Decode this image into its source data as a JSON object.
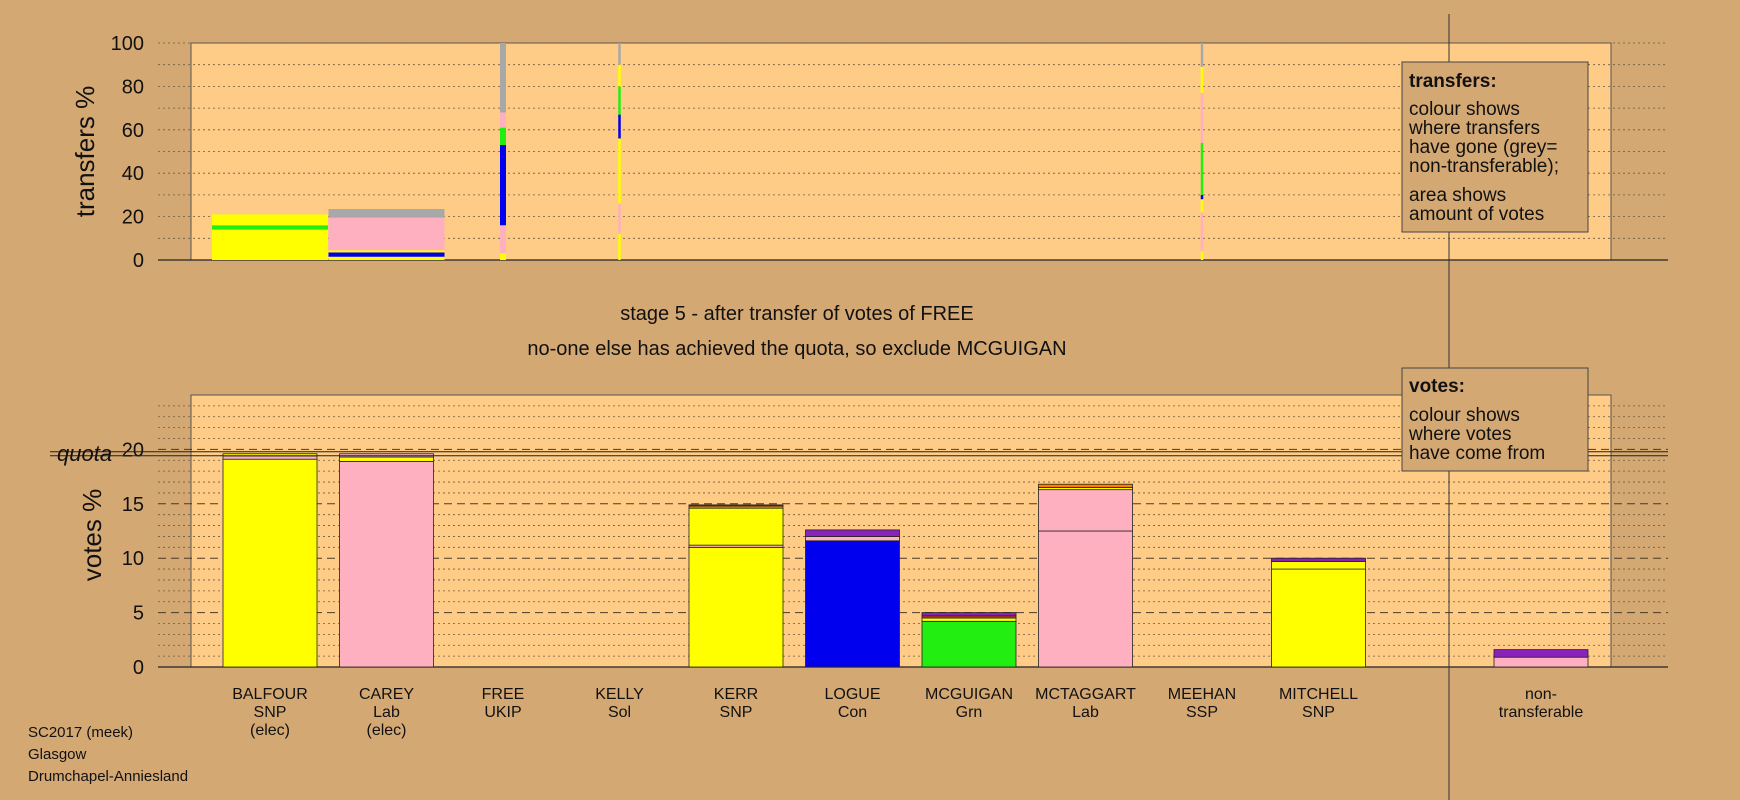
{
  "chart_data": {
    "type": "bar",
    "stage_title": "stage 5 - after transfer of votes of FREE",
    "stage_subtitle": "no-one else has achieved the quota, so exclude MCGUIGAN",
    "footer": [
      "SC2017 (meek)",
      "Glasgow",
      "Drumchapel-Anniesland"
    ],
    "party_colors": {
      "SNP": "#ffff00",
      "Lab": "#ffb0c0",
      "Con": "#0000ee",
      "Grn": "#22ee11",
      "UKIP": "#8822bb",
      "Sol": "#ff7f00",
      "SSP": "#e03030",
      "nontransferable": "#a8a8a8"
    },
    "plot_background": "#ffcc88",
    "page_background": "#d4a873",
    "candidates": [
      {
        "name": "BALFOUR",
        "party": "SNP",
        "note": "(elec)"
      },
      {
        "name": "CAREY",
        "party": "Lab",
        "note": "(elec)"
      },
      {
        "name": "FREE",
        "party": "UKIP",
        "note": ""
      },
      {
        "name": "KELLY",
        "party": "Sol",
        "note": ""
      },
      {
        "name": "KERR",
        "party": "SNP",
        "note": ""
      },
      {
        "name": "LOGUE",
        "party": "Con",
        "note": ""
      },
      {
        "name": "MCGUIGAN",
        "party": "Grn",
        "note": ""
      },
      {
        "name": "MCTAGGART",
        "party": "Lab",
        "note": ""
      },
      {
        "name": "MEEHAN",
        "party": "SSP",
        "note": ""
      },
      {
        "name": "MITCHELL",
        "party": "SNP",
        "note": ""
      }
    ],
    "nontransferable_label": [
      "non-",
      "transferable"
    ],
    "votes": {
      "ylabel": "votes %",
      "quota_label": "quota",
      "quota": 19.6,
      "ylim": [
        0,
        25
      ],
      "yticks": [
        0,
        5,
        10,
        15,
        20
      ],
      "bars": [
        {
          "cand": "BALFOUR",
          "segments": [
            {
              "party": "SNP",
              "value": 19.1
            },
            {
              "party": "Lab",
              "value": 0.3
            },
            {
              "party": "SNP",
              "value": 0.2
            }
          ]
        },
        {
          "cand": "CAREY",
          "segments": [
            {
              "party": "Lab",
              "value": 18.9
            },
            {
              "party": "SNP",
              "value": 0.4
            },
            {
              "party": "Lab",
              "value": 0.3
            }
          ]
        },
        {
          "cand": "FREE",
          "segments": []
        },
        {
          "cand": "KELLY",
          "segments": []
        },
        {
          "cand": "KERR",
          "segments": [
            {
              "party": "SNP",
              "value": 11.0
            },
            {
              "party": "Lab",
              "value": 0.2
            },
            {
              "party": "SNP",
              "value": 3.4
            },
            {
              "party": "Sol",
              "value": 0.2
            },
            {
              "party": "UKIP",
              "value": 0.1
            }
          ]
        },
        {
          "cand": "LOGUE",
          "segments": [
            {
              "party": "Con",
              "value": 11.6
            },
            {
              "party": "Lab",
              "value": 0.4
            },
            {
              "party": "UKIP",
              "value": 0.6
            }
          ]
        },
        {
          "cand": "MCGUIGAN",
          "segments": [
            {
              "party": "Grn",
              "value": 4.2
            },
            {
              "party": "SNP",
              "value": 0.3
            },
            {
              "party": "SSP",
              "value": 0.2
            },
            {
              "party": "UKIP",
              "value": 0.3
            }
          ]
        },
        {
          "cand": "MCTAGGART",
          "segments": [
            {
              "party": "Lab",
              "value": 12.5
            },
            {
              "party": "Lab",
              "value": 3.8
            },
            {
              "party": "SNP",
              "value": 0.2
            },
            {
              "party": "Sol",
              "value": 0.3
            }
          ]
        },
        {
          "cand": "MEEHAN",
          "segments": []
        },
        {
          "cand": "MITCHELL",
          "segments": [
            {
              "party": "SNP",
              "value": 9.0
            },
            {
              "party": "SNP",
              "value": 0.7
            },
            {
              "party": "UKIP",
              "value": 0.3
            }
          ]
        }
      ],
      "nontransferable": [
        {
          "party": "Lab",
          "value": 0.9
        },
        {
          "party": "UKIP",
          "value": 0.7
        }
      ]
    },
    "transfers": {
      "ylabel": "transfers %",
      "ylim": [
        0,
        100
      ],
      "yticks": [
        0,
        20,
        40,
        60,
        80,
        100
      ],
      "stacks": [
        {
          "cand": "BALFOUR",
          "width": "wide",
          "segments": [
            {
              "party": "SNP",
              "value": 14
            },
            {
              "party": "Grn",
              "value": 2
            },
            {
              "party": "SNP",
              "value": 5
            }
          ]
        },
        {
          "cand": "CAREY",
          "width": "wide",
          "segments": [
            {
              "party": "SNP",
              "value": 1.5
            },
            {
              "party": "Con",
              "value": 2
            },
            {
              "party": "SNP",
              "value": 1
            },
            {
              "party": "Lab",
              "value": 15
            },
            {
              "party": "nontransferable",
              "value": 4
            }
          ]
        },
        {
          "cand": "FREE",
          "width": "thin",
          "segments": [
            {
              "party": "SNP",
              "value": 3
            },
            {
              "party": "Lab",
              "value": 13
            },
            {
              "party": "Con",
              "value": 37
            },
            {
              "party": "Grn",
              "value": 8
            },
            {
              "party": "Lab",
              "value": 7
            },
            {
              "party": "nontransferable",
              "value": 32
            }
          ]
        },
        {
          "cand": "KELLY",
          "width": "hair",
          "segments": [
            {
              "party": "SNP",
              "value": 12
            },
            {
              "party": "Lab",
              "value": 14
            },
            {
              "party": "SNP",
              "value": 30
            },
            {
              "party": "Con",
              "value": 11
            },
            {
              "party": "Grn",
              "value": 13
            },
            {
              "party": "SNP",
              "value": 10
            },
            {
              "party": "nontransferable",
              "value": 10
            }
          ]
        },
        {
          "cand": "MEEHAN",
          "width": "hair",
          "segments": [
            {
              "party": "SNP",
              "value": 4
            },
            {
              "party": "Lab",
              "value": 18
            },
            {
              "party": "SNP",
              "value": 6
            },
            {
              "party": "Con",
              "value": 2
            },
            {
              "party": "Grn",
              "value": 24
            },
            {
              "party": "Lab",
              "value": 23
            },
            {
              "party": "SNP",
              "value": 12
            },
            {
              "party": "nontransferable",
              "value": 11
            }
          ]
        }
      ]
    },
    "legend_transfers": {
      "title": "transfers:",
      "lines1": [
        "colour shows",
        "where transfers",
        "have gone (grey=",
        "non-transferable);"
      ],
      "lines2": [
        "area shows",
        "amount of votes"
      ]
    },
    "legend_votes": {
      "title": "votes:",
      "lines": [
        "colour shows",
        "where votes",
        "have come from"
      ]
    }
  }
}
